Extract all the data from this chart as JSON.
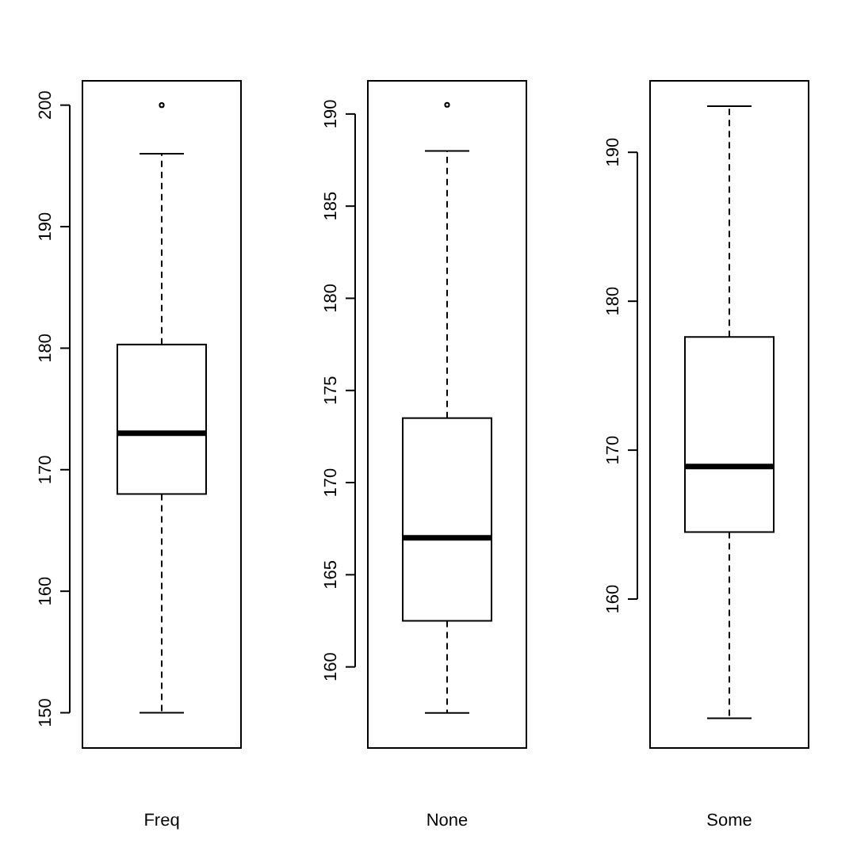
{
  "chart_data": [
    {
      "type": "box",
      "categories": [
        "Freq"
      ],
      "boxes": [
        {
          "low": 150,
          "q1": 168,
          "median": 173,
          "q3": 180.3,
          "high": 196,
          "outliers": [
            200
          ]
        }
      ],
      "ylim": [
        147.1,
        202
      ],
      "yticks": [
        150,
        160,
        170,
        180,
        190,
        200
      ],
      "grid": false
    },
    {
      "type": "box",
      "categories": [
        "None"
      ],
      "boxes": [
        {
          "low": 157.5,
          "q1": 162.5,
          "median": 167,
          "q3": 173.5,
          "high": 188,
          "outliers": [
            190.5
          ]
        }
      ],
      "ylim": [
        155.6,
        191.8
      ],
      "yticks": [
        160,
        165,
        170,
        175,
        180,
        185,
        190
      ],
      "grid": false
    },
    {
      "type": "box",
      "categories": [
        "Some"
      ],
      "boxes": [
        {
          "low": 152,
          "q1": 164.5,
          "median": 168.9,
          "q3": 177.6,
          "high": 193.1
        }
      ],
      "ylim": [
        150,
        194.8
      ],
      "yticks": [
        160,
        170,
        180,
        190
      ],
      "grid": false
    }
  ]
}
